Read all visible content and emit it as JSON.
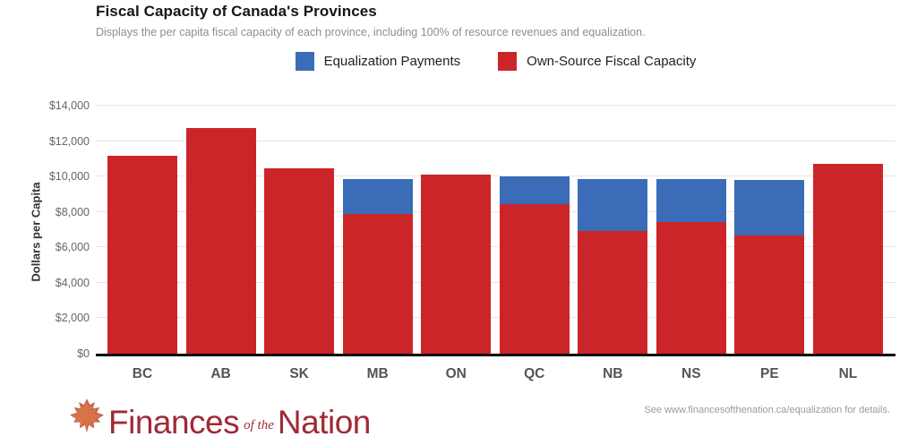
{
  "header": {
    "title": "Fiscal Capacity of Canada's Provinces",
    "subtitle": "Displays the per capita fiscal capacity of each province, including 100% of resource revenues and equalization."
  },
  "legend": {
    "items": [
      {
        "label": "Equalization Payments",
        "color": "#3b6cb7"
      },
      {
        "label": "Own-Source Fiscal Capacity",
        "color": "#cc2529"
      }
    ]
  },
  "chart_data": {
    "type": "bar",
    "stacked": true,
    "title": "Fiscal Capacity of Canada's Provinces",
    "categories": [
      "BC",
      "AB",
      "SK",
      "MB",
      "ON",
      "QC",
      "NB",
      "NS",
      "PE",
      "NL"
    ],
    "series": [
      {
        "name": "Own-Source Fiscal Capacity",
        "color": "#cc2529",
        "values": [
          11150,
          12750,
          10450,
          7900,
          10100,
          8450,
          6900,
          7450,
          6650,
          10700
        ]
      },
      {
        "name": "Equalization Payments",
        "color": "#3b6cb7",
        "values": [
          0,
          0,
          0,
          1950,
          0,
          1550,
          2950,
          2400,
          3150,
          0
        ]
      }
    ],
    "ylabel": "Dollars per Capita",
    "xlabel": "",
    "ylim": [
      0,
      14000
    ],
    "yticks": [
      {
        "label": "$0",
        "value": 0
      },
      {
        "label": "$2,000",
        "value": 2000
      },
      {
        "label": "$4,000",
        "value": 4000
      },
      {
        "label": "$6,000",
        "value": 6000
      },
      {
        "label": "$8,000",
        "value": 8000
      },
      {
        "label": "$10,000",
        "value": 10000
      },
      {
        "label": "$12,000",
        "value": 12000
      },
      {
        "label": "$14,000",
        "value": 14000
      }
    ],
    "grid": "horizontal",
    "legend_position": "top"
  },
  "footer": {
    "brand": {
      "icon": "maple-leaf-icon",
      "word1": "Finances",
      "word2": "of the",
      "word3": "Nation",
      "color": "#9e2b36"
    },
    "note": "See www.financesofthenation.ca/equalization for details."
  }
}
